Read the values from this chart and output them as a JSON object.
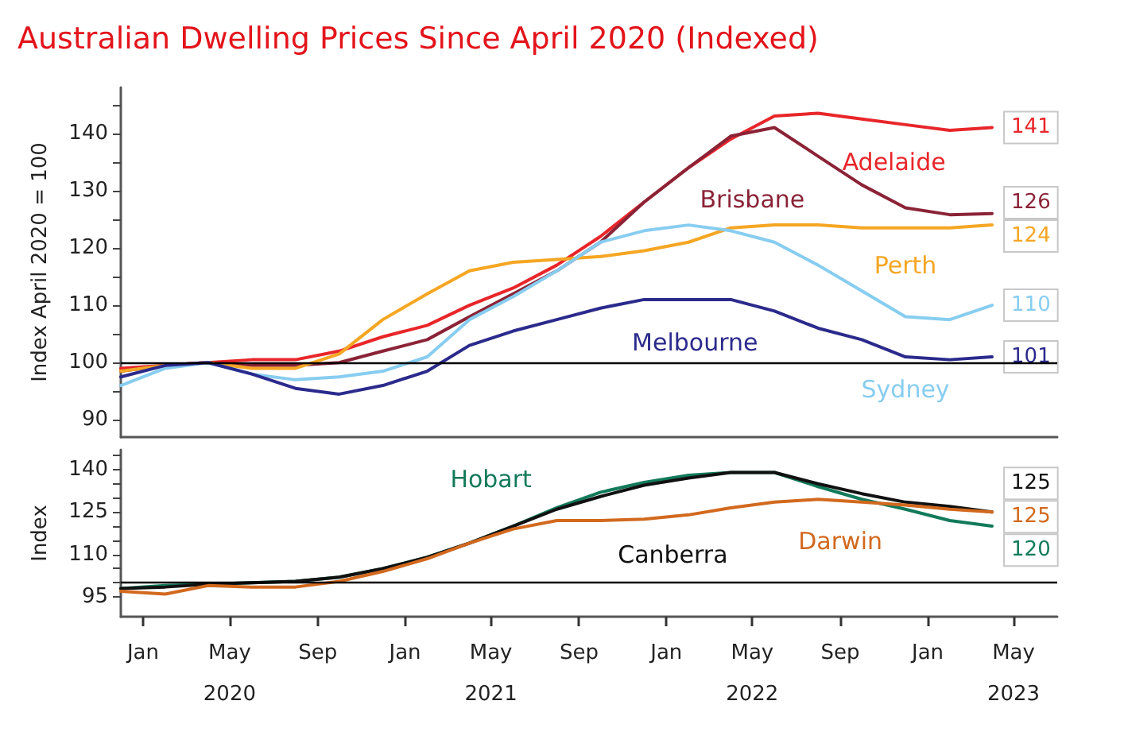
{
  "chart_data": [
    {
      "type": "line",
      "title": "Australian Dwelling Prices Since April 2020 (Indexed)",
      "ylabel": "Index April 2020 = 100",
      "x": [
        "2019-12",
        "2020-02",
        "2020-04",
        "2020-06",
        "2020-08",
        "2020-10",
        "2020-12",
        "2021-02",
        "2021-04",
        "2021-06",
        "2021-08",
        "2021-10",
        "2021-12",
        "2022-02",
        "2022-04",
        "2022-06",
        "2022-08",
        "2022-10",
        "2022-12",
        "2023-02",
        "2023-04"
      ],
      "series": [
        {
          "name": "Adelaide",
          "color": "#e8262a",
          "values": [
            99,
            99.5,
            100,
            100.5,
            100.5,
            102,
            104.5,
            106.5,
            110,
            113,
            117,
            122,
            128,
            134,
            139,
            143,
            143.5,
            142.5,
            141.5,
            140.5,
            141
          ],
          "value_labels": [
            null,
            null,
            null,
            null,
            null,
            null,
            null,
            null,
            null,
            null,
            null,
            null,
            null,
            null,
            null,
            null,
            null,
            null,
            null,
            null,
            "141"
          ]
        },
        {
          "name": "Brisbane",
          "color": "#8b2337",
          "values": [
            98.5,
            99.5,
            100,
            99.5,
            99.5,
            100,
            102,
            104,
            108,
            112,
            116,
            121,
            128,
            134,
            139.5,
            141,
            136,
            131,
            127,
            125.8,
            126
          ],
          "value_labels": [
            null,
            null,
            null,
            null,
            null,
            null,
            null,
            null,
            null,
            null,
            null,
            null,
            null,
            null,
            null,
            null,
            null,
            null,
            null,
            null,
            "126"
          ]
        },
        {
          "name": "Perth",
          "color": "#f5a623",
          "values": [
            98.5,
            99.5,
            100,
            99,
            99,
            101.5,
            107.5,
            112,
            116,
            117.5,
            118,
            118.5,
            119.5,
            121,
            123.5,
            124,
            124,
            123.5,
            123.5,
            123.5,
            124
          ],
          "value_labels": [
            null,
            null,
            null,
            null,
            null,
            null,
            null,
            null,
            null,
            null,
            null,
            null,
            null,
            null,
            null,
            null,
            null,
            null,
            null,
            null,
            "124"
          ]
        },
        {
          "name": "Sydney",
          "color": "#87cdf0",
          "values": [
            96,
            99,
            100,
            98,
            97,
            97.5,
            98.5,
            101,
            107.5,
            111.5,
            116,
            121,
            123,
            124,
            123,
            121,
            117,
            112.5,
            108,
            107.5,
            110
          ],
          "value_labels": [
            null,
            null,
            null,
            null,
            null,
            null,
            null,
            null,
            null,
            null,
            null,
            null,
            null,
            null,
            null,
            null,
            null,
            null,
            null,
            null,
            "110"
          ]
        },
        {
          "name": "Melbourne",
          "color": "#2b2a8c",
          "values": [
            97.5,
            99.5,
            100,
            98,
            95.5,
            94.5,
            96,
            98.5,
            103,
            105.5,
            107.5,
            109.5,
            111,
            111,
            111,
            109,
            106,
            104,
            101,
            100.5,
            101
          ],
          "value_labels": [
            null,
            null,
            null,
            null,
            null,
            null,
            null,
            null,
            null,
            null,
            null,
            null,
            null,
            null,
            null,
            null,
            null,
            null,
            null,
            null,
            "101"
          ]
        }
      ],
      "xlim": [
        "2019-12-01",
        "2023-07-01"
      ],
      "ylim": [
        87,
        148
      ],
      "yticks": [
        90,
        {
          "value": 95,
          "label": null
        },
        100,
        {
          "value": 105,
          "label": null
        },
        110,
        {
          "value": 115,
          "label": null
        },
        120,
        {
          "value": 125,
          "label": null
        },
        130,
        {
          "value": 135,
          "label": null
        },
        140,
        {
          "value": 145,
          "label": null
        }
      ],
      "tick_labels": "y",
      "ref_lines": [
        {
          "axis": "y",
          "value": 100,
          "color": "#000000"
        }
      ]
    },
    {
      "type": "line",
      "ylabel": "Index",
      "x": [
        "2019-12",
        "2020-02",
        "2020-04",
        "2020-06",
        "2020-08",
        "2020-10",
        "2020-12",
        "2021-02",
        "2021-04",
        "2021-06",
        "2021-08",
        "2021-10",
        "2021-12",
        "2022-02",
        "2022-04",
        "2022-06",
        "2022-08",
        "2022-10",
        "2022-12",
        "2023-02",
        "2023-04"
      ],
      "series": [
        {
          "name": "Hobart",
          "color": "#127a5a",
          "values": [
            98,
            99,
            99.5,
            100,
            100.5,
            102,
            105,
            109,
            114,
            120,
            126.5,
            132,
            135.5,
            138,
            139,
            139,
            134,
            129.5,
            126,
            122,
            120
          ],
          "value_labels": [
            null,
            null,
            null,
            null,
            null,
            null,
            null,
            null,
            null,
            null,
            null,
            null,
            null,
            null,
            null,
            null,
            null,
            null,
            null,
            null,
            "120"
          ]
        },
        {
          "name": "Canberra",
          "color": "#111111",
          "values": [
            98,
            98.5,
            99.5,
            100,
            100.5,
            102,
            105,
            109,
            114,
            120,
            126,
            130.5,
            134.5,
            137,
            139,
            139,
            135,
            131.5,
            128.5,
            127,
            125
          ],
          "value_labels": [
            null,
            null,
            null,
            null,
            null,
            null,
            null,
            null,
            null,
            null,
            null,
            null,
            null,
            null,
            null,
            null,
            null,
            null,
            null,
            null,
            "125"
          ]
        },
        {
          "name": "Darwin",
          "color": "#d2691e",
          "values": [
            97,
            96,
            99,
            98.5,
            98.5,
            100.5,
            104,
            108.5,
            114,
            119,
            122,
            122,
            122.5,
            124,
            126.5,
            128.5,
            129.5,
            128.5,
            127.5,
            126,
            125
          ],
          "value_labels": [
            null,
            null,
            null,
            null,
            null,
            null,
            null,
            null,
            null,
            null,
            null,
            null,
            null,
            null,
            null,
            null,
            null,
            null,
            null,
            null,
            "125"
          ]
        }
      ],
      "xlim": [
        "2019-12-01",
        "2023-07-01"
      ],
      "xticks": [
        {
          "value": "2020-01",
          "label": "Jan"
        },
        {
          "value": "2020-05",
          "label": "May\n2020"
        },
        {
          "value": "2020-09",
          "label": "Sep"
        },
        {
          "value": "2021-01",
          "label": "Jan"
        },
        {
          "value": "2021-05",
          "label": "May\n2021"
        },
        {
          "value": "2021-09",
          "label": "Sep"
        },
        {
          "value": "2022-01",
          "label": "Jan"
        },
        {
          "value": "2022-05",
          "label": "May\n2022"
        },
        {
          "value": "2022-09",
          "label": "Sep"
        },
        {
          "value": "2023-01",
          "label": "Jan"
        },
        {
          "value": "2023-05",
          "label": "May\n2023"
        }
      ],
      "ylim": [
        88,
        147
      ],
      "yticks": [
        95,
        {
          "value": 100,
          "label": null
        },
        {
          "value": 105,
          "label": null
        },
        110,
        {
          "value": 115,
          "label": null
        },
        {
          "value": 120,
          "label": null
        },
        125,
        {
          "value": 130,
          "label": null
        },
        {
          "value": 135,
          "label": null
        },
        140,
        {
          "value": 145,
          "label": null
        }
      ],
      "ref_lines": [
        {
          "axis": "y",
          "value": 100,
          "color": "#000000"
        }
      ]
    }
  ]
}
